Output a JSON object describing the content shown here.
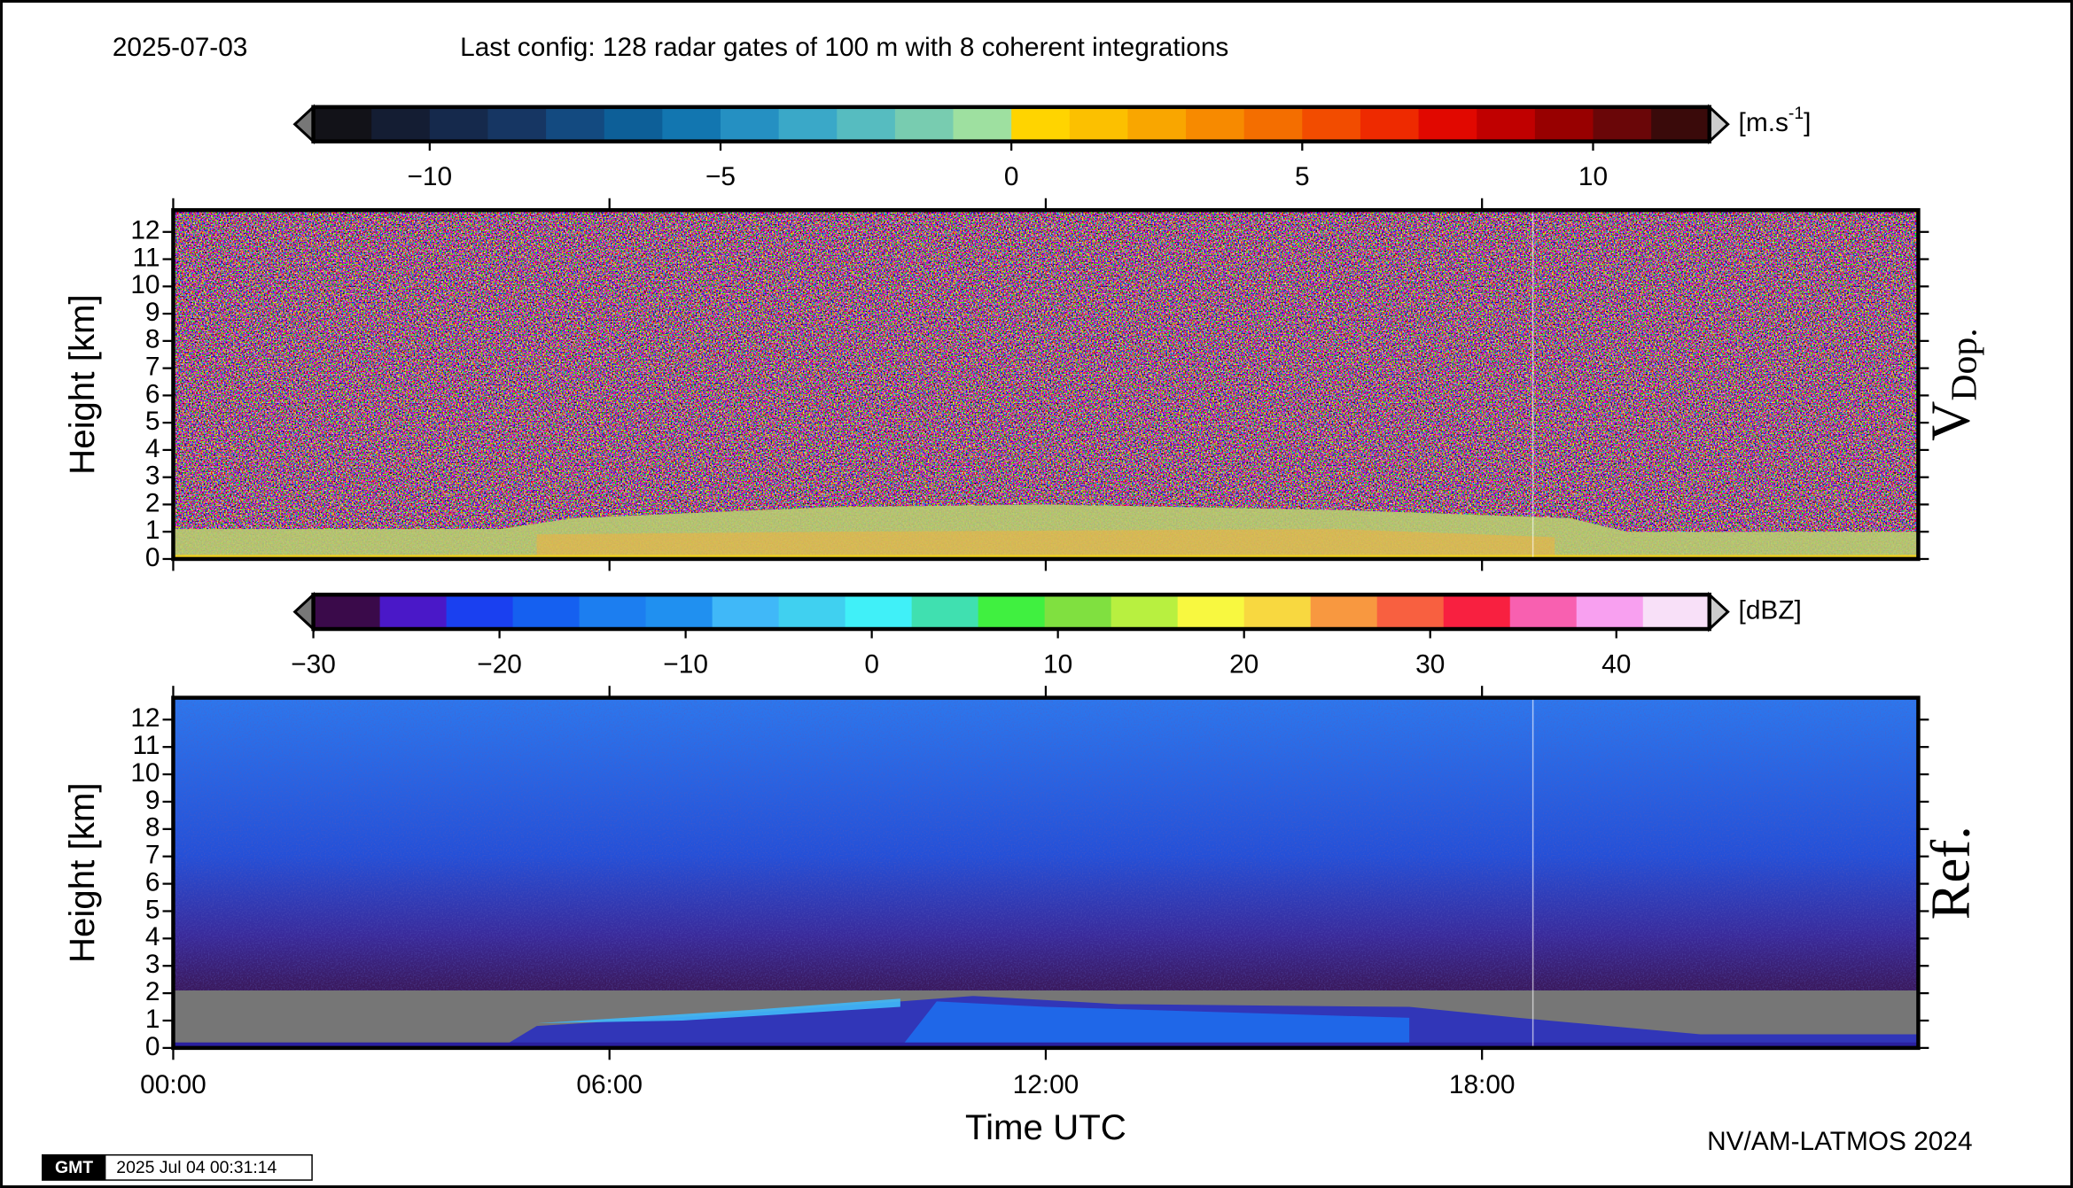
{
  "date": "2025-07-03",
  "config": "Last config: 128 radar gates of 100 m with 8 coherent integrations",
  "credit": "NV/AM-LATMOS 2024",
  "logo": "GMT",
  "timestamp": "2025 Jul 04 00:31:14",
  "chart_data": [
    {
      "type": "heatmap",
      "panel_label": "V",
      "panel_label_sub": "Dop.",
      "ylabel": "Height [km]",
      "xlim": [
        0,
        24
      ],
      "xticks": [
        0,
        6,
        12,
        18
      ],
      "ylim": [
        0,
        12.8
      ],
      "yticks": [
        0,
        1,
        2,
        3,
        4,
        5,
        6,
        7,
        8,
        9,
        10,
        11,
        12
      ],
      "colorbar": {
        "unit": "[m.s",
        "unit_sup": "-1",
        "unit_end": "]",
        "lim": [
          -12,
          12
        ],
        "ticks": [
          {
            "value": -10,
            "label": "−10"
          },
          {
            "value": -5,
            "label": "−5"
          },
          0,
          5,
          10
        ],
        "colors": [
          "#121218",
          "#141d33",
          "#15294c",
          "#163663",
          "#134a80",
          "#0d5f98",
          "#1276b0",
          "#2590c2",
          "#3aa8c8",
          "#56bcc0",
          "#78ccb0",
          "#9ee0a0",
          "#ffd400",
          "#fcc000",
          "#f9a600",
          "#f78a00",
          "#f46e00",
          "#f24c00",
          "#ee2a00",
          "#e10800",
          "#c00000",
          "#980000",
          "#6a0608",
          "#3a0a0a"
        ]
      }
    },
    {
      "type": "heatmap",
      "panel_label": "Ref.",
      "ylabel": "Height [km]",
      "xlabel": "Time UTC",
      "xlim": [
        0,
        24
      ],
      "xticks": [
        {
          "value": 0,
          "label": "00:00"
        },
        {
          "value": 6,
          "label": "06:00"
        },
        {
          "value": 12,
          "label": "12:00"
        },
        {
          "value": 18,
          "label": "18:00"
        }
      ],
      "ylim": [
        0,
        12.8
      ],
      "yticks": [
        0,
        1,
        2,
        3,
        4,
        5,
        6,
        7,
        8,
        9,
        10,
        11,
        12
      ],
      "colorbar": {
        "unit": "[dBZ]",
        "lim": [
          -30,
          45
        ],
        "ticks": [
          {
            "value": -30,
            "label": "−30"
          },
          {
            "value": -20,
            "label": "−20"
          },
          {
            "value": -10,
            "label": "−10"
          },
          0,
          10,
          20,
          30,
          40
        ],
        "colors": [
          "#3a0a4a",
          "#4a18c8",
          "#1a40f0",
          "#1560f0",
          "#1c7ef0",
          "#2090f0",
          "#40b8f8",
          "#40d0f0",
          "#40f0f8",
          "#40e0b0",
          "#40f040",
          "#80e040",
          "#b8f040",
          "#f8f840",
          "#f8d840",
          "#f89840",
          "#f86040",
          "#f82040",
          "#f860b0",
          "#f8a0f0",
          "#f8e0f8"
        ]
      }
    }
  ]
}
